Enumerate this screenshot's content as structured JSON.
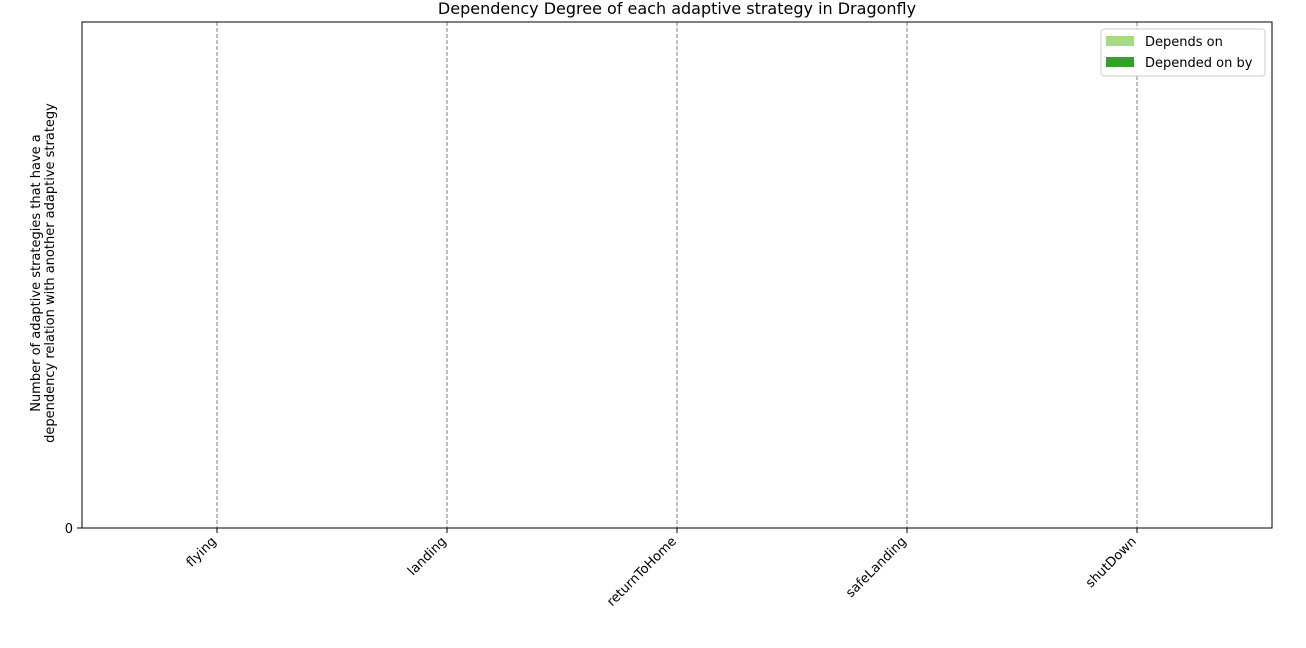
{
  "chart_data": {
    "type": "bar",
    "title": "Dependency Degree of each adaptive strategy in Dragonfly",
    "xlabel": "",
    "ylabel": [
      "Number of adaptive strategies that have a",
      "dependency relation with another adaptive strategy"
    ],
    "categories": [
      "flying",
      "landing",
      "returnToHome",
      "safeLanding",
      "shutDown"
    ],
    "series": [
      {
        "name": "Depends on",
        "color": "#a6dc80",
        "values": [
          0,
          0,
          0,
          0,
          0
        ]
      },
      {
        "name": "Depended on by",
        "color": "#33a02c",
        "values": [
          0,
          0,
          0,
          0,
          0
        ]
      }
    ],
    "yticks": [
      "0"
    ],
    "ylim": [
      0,
      1
    ],
    "grid": "vertical-dashed",
    "legend": "top-right"
  }
}
